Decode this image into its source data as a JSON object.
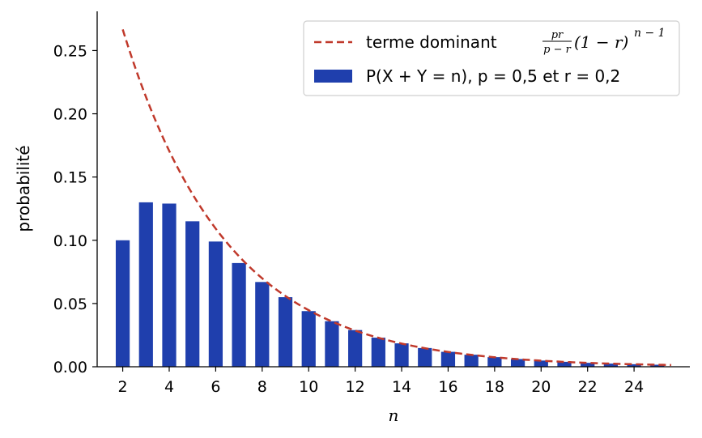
{
  "chart_data": {
    "type": "bar",
    "x": [
      2,
      3,
      4,
      5,
      6,
      7,
      8,
      9,
      10,
      11,
      12,
      13,
      14,
      15,
      16,
      17,
      18,
      19,
      20,
      21,
      22,
      23,
      24,
      25
    ],
    "series": [
      {
        "name": "P(X + Y = n), p = 0,5 et r = 0,2",
        "type": "bar",
        "color": "#1f3fad",
        "values": [
          0.1,
          0.13,
          0.129,
          0.115,
          0.099,
          0.082,
          0.067,
          0.055,
          0.044,
          0.036,
          0.029,
          0.023,
          0.0185,
          0.0148,
          0.0118,
          0.0095,
          0.0076,
          0.0061,
          0.0049,
          0.0039,
          0.0031,
          0.0025,
          0.002,
          0.0016
        ]
      },
      {
        "name": "terme dominant pr/(p−r)(1 − r)^(n − 1)",
        "type": "line",
        "style": "dashed",
        "color": "#c0392b",
        "formula": "(p*r/(p-r))*(1-r)^(n-1)",
        "params": {
          "p": 0.5,
          "r": 0.2
        },
        "x_range": [
          2,
          25.6
        ]
      }
    ],
    "xlabel": "n",
    "ylabel": "probabilité",
    "xticks": [
      "2",
      "4",
      "6",
      "8",
      "10",
      "12",
      "14",
      "16",
      "18",
      "20",
      "22",
      "24"
    ],
    "xtick_values": [
      2,
      4,
      6,
      8,
      10,
      12,
      14,
      16,
      18,
      20,
      22,
      24
    ],
    "yticks": [
      "0.00",
      "0.05",
      "0.10",
      "0.15",
      "0.20",
      "0.25"
    ],
    "ytick_values": [
      0,
      0.05,
      0.1,
      0.15,
      0.2,
      0.25
    ],
    "xlim": [
      0.9,
      26.4
    ],
    "ylim": [
      0,
      0.281
    ],
    "grid": false,
    "legend_position": "top-right"
  },
  "legend": {
    "line_prefix": "terme dominant",
    "line_frac_num": "pr",
    "line_frac_den": "p − r",
    "line_tail": "(1 − r)",
    "line_exp": "n − 1",
    "bar_label": "P(X + Y = n), p = 0,5 et r = 0,2"
  }
}
